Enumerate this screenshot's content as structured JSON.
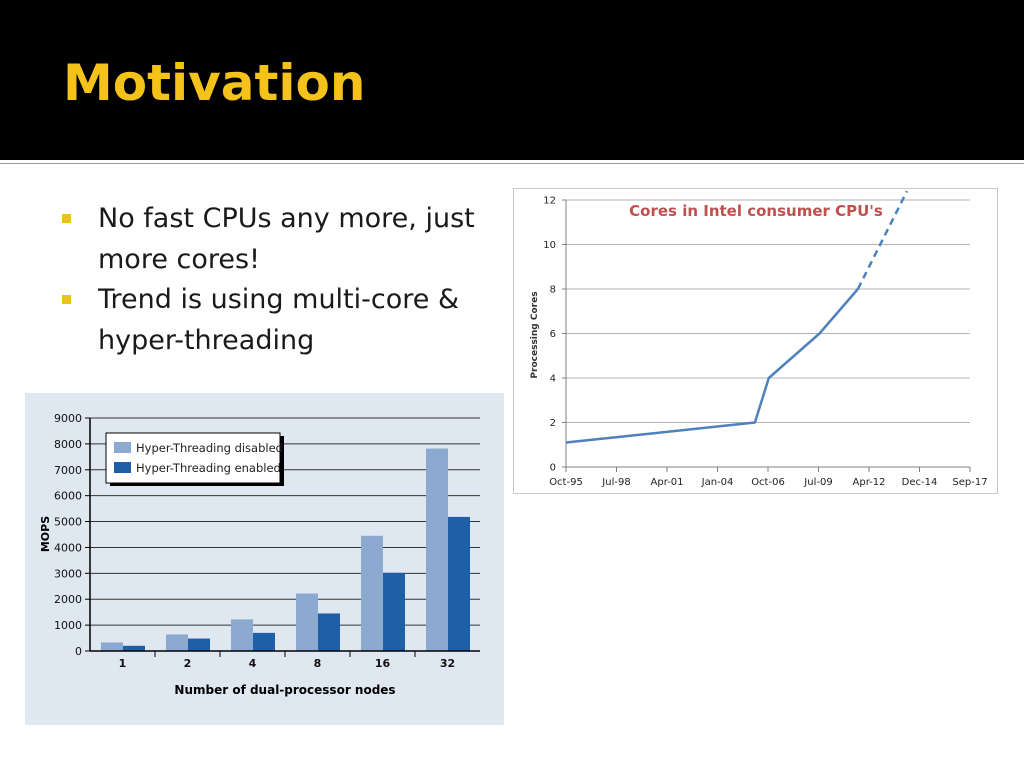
{
  "slide": {
    "title": "Motivation",
    "bullets": [
      {
        "text": "No fast CPUs any more, just more cores!"
      },
      {
        "text": "Trend is using multi-core & hyper-threading"
      }
    ]
  },
  "colors": {
    "header_bg": "#000000",
    "title": "#f4c218",
    "bullet": "#e7c41a",
    "ht_disabled": "#8ca9cf",
    "ht_enabled": "#1f5fa8",
    "line": "#4f81bd",
    "line_chart_title": "#c0504d"
  },
  "chart_data": [
    {
      "type": "bar",
      "categories": [
        "1",
        "2",
        "4",
        "8",
        "16",
        "32"
      ],
      "series": [
        {
          "name": "Hyper-Threading disabled",
          "values": [
            330,
            640,
            1220,
            2220,
            4450,
            7820
          ]
        },
        {
          "name": "Hyper-Threading enabled",
          "values": [
            200,
            480,
            700,
            1450,
            3020,
            5180
          ]
        }
      ],
      "title": "",
      "xlabel": "Number of dual-processor nodes",
      "ylabel": "MOPS",
      "ylim": [
        0,
        9000
      ],
      "yticks": [
        0,
        1000,
        2000,
        3000,
        4000,
        5000,
        6000,
        7000,
        8000,
        9000
      ],
      "grid": true,
      "legend": "top-left"
    },
    {
      "type": "line",
      "title": "Cores in Intel consumer CPU's",
      "xlabel": "",
      "ylabel": "Processing Cores",
      "xticks": [
        "Oct-95",
        "Jul-98",
        "Apr-01",
        "Jan-04",
        "Oct-06",
        "Jul-09",
        "Apr-12",
        "Dec-14",
        "Sep-17"
      ],
      "ylim": [
        0,
        12
      ],
      "yticks": [
        0,
        2,
        4,
        6,
        8,
        10,
        12
      ],
      "grid": true,
      "series": [
        {
          "style": "solid",
          "x": [
            "1995-10",
            "2006-01",
            "2006-10",
            "2009-07",
            "2011-08"
          ],
          "y": [
            1.1,
            2,
            4,
            6,
            8
          ]
        },
        {
          "style": "dashed",
          "x": [
            "2011-08",
            "2014-04"
          ],
          "y": [
            8,
            12.4
          ]
        }
      ]
    }
  ]
}
